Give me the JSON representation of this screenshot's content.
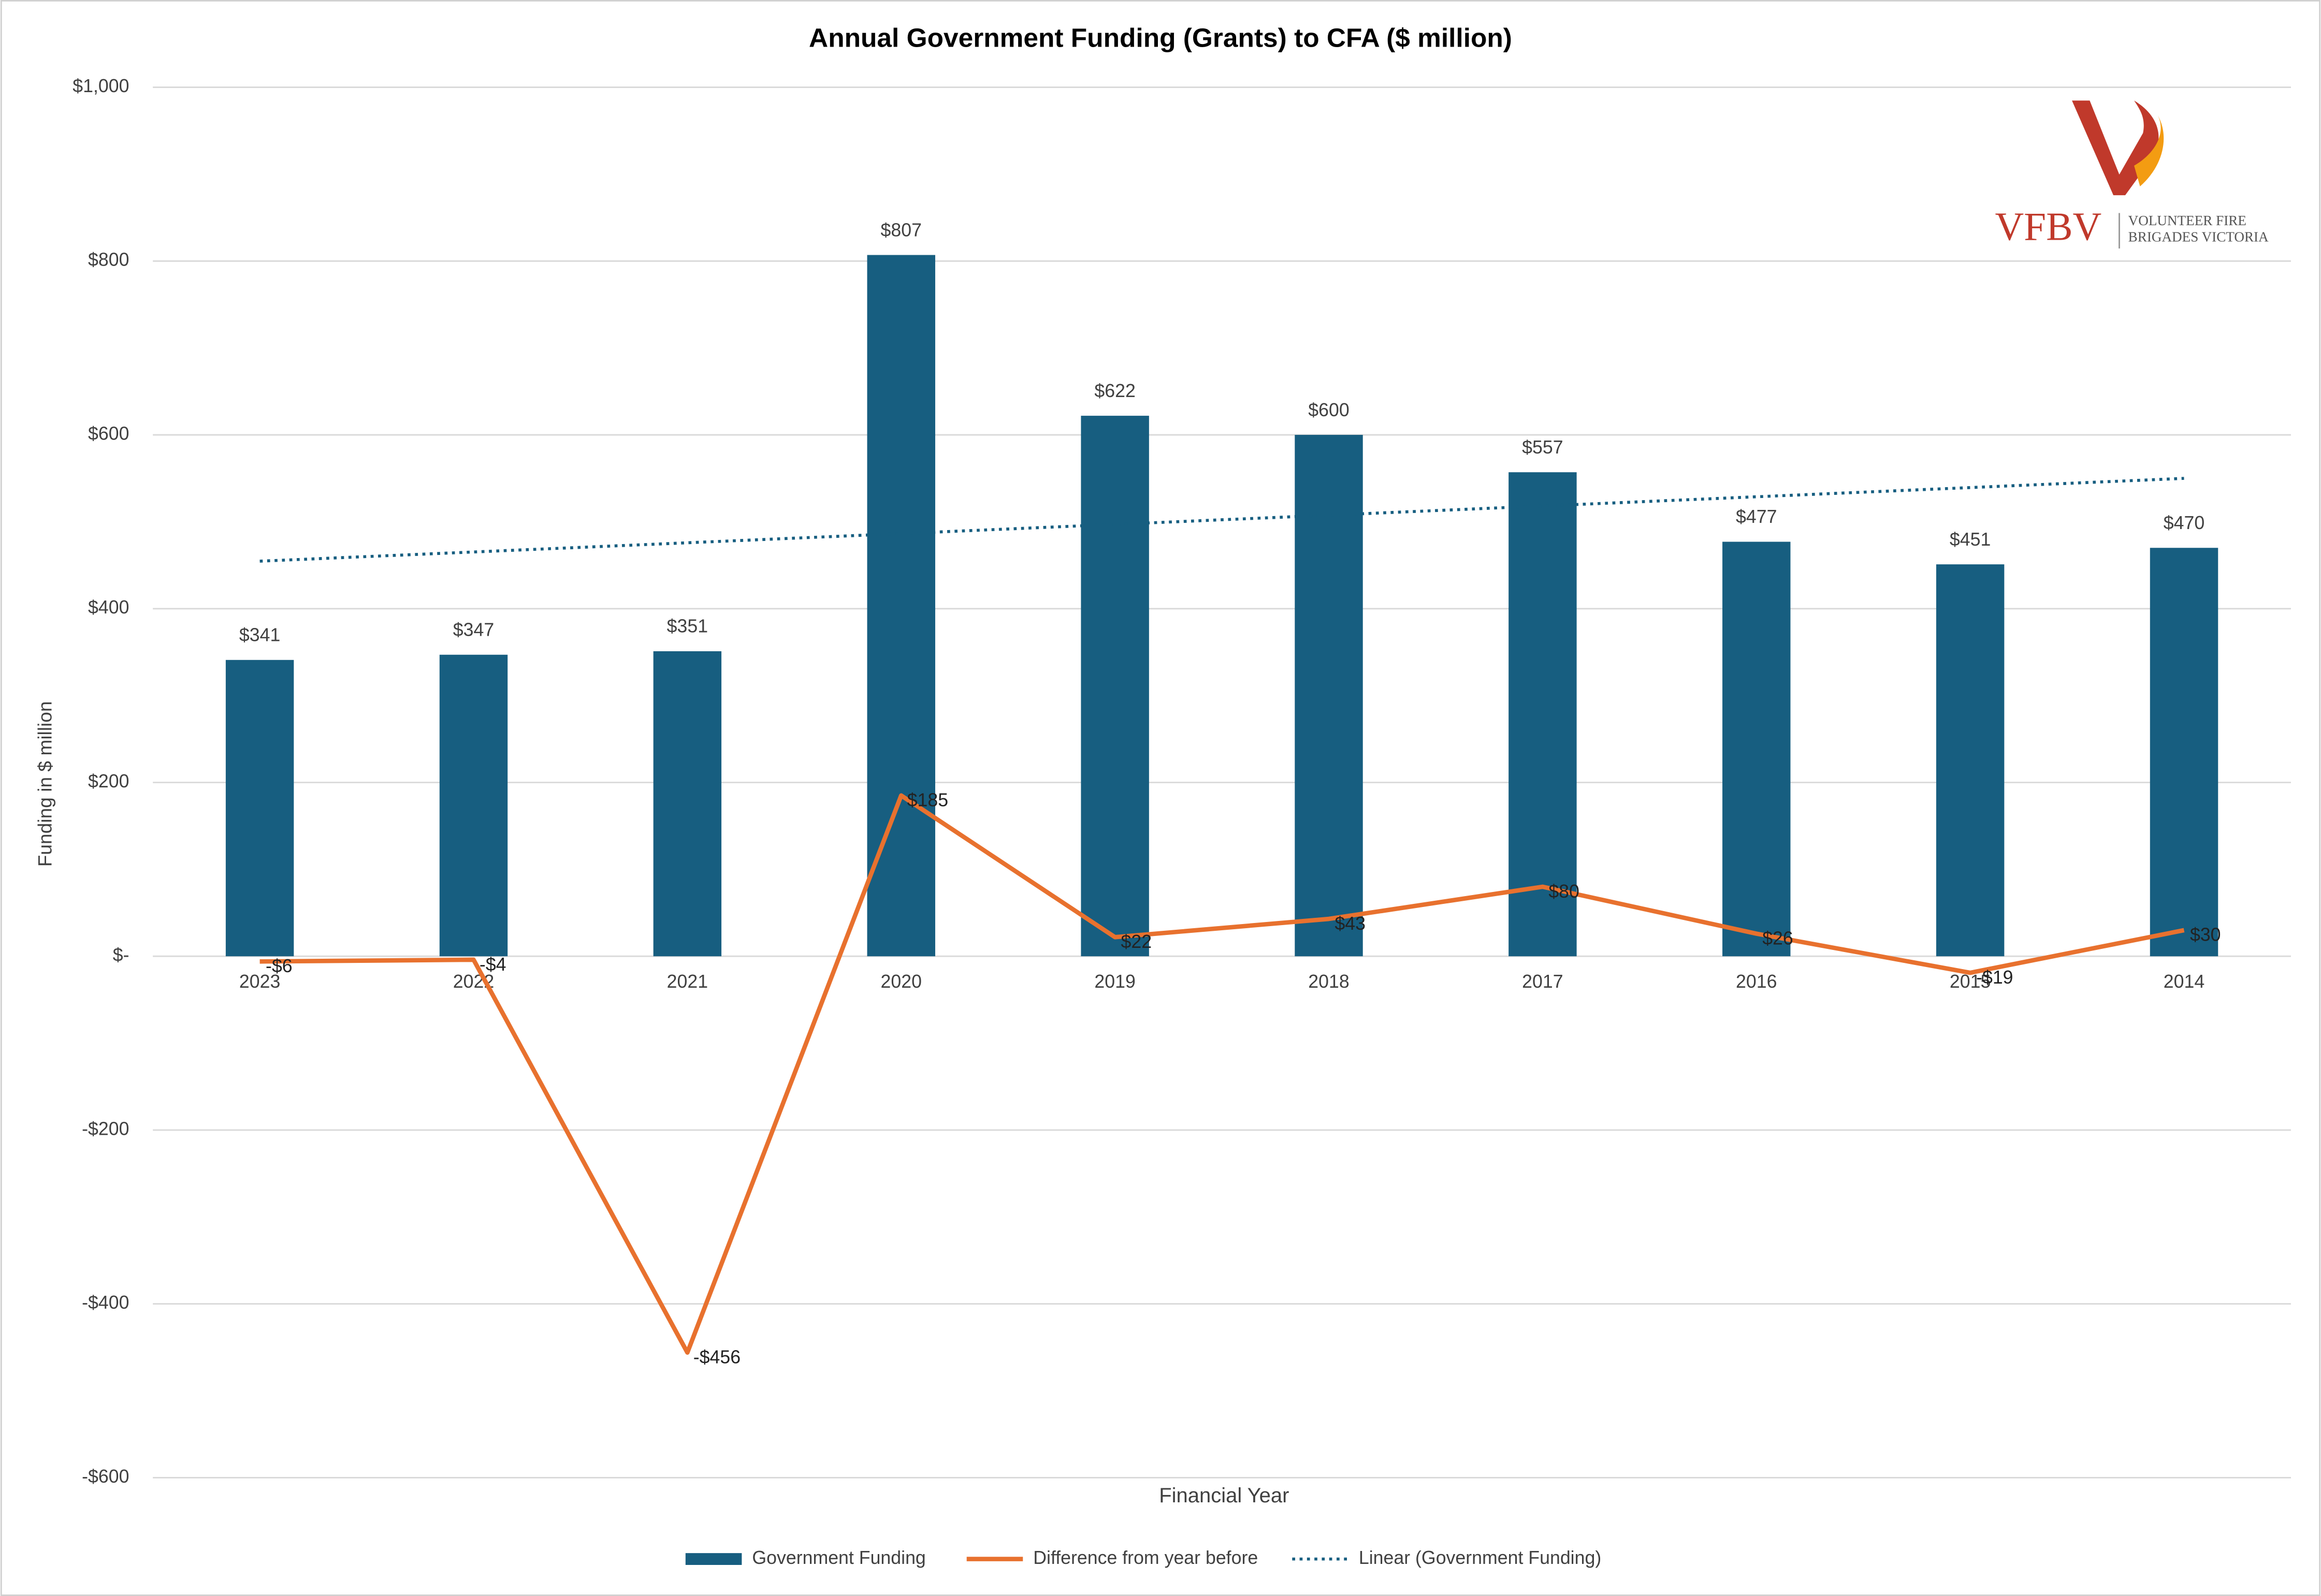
{
  "chart_data": {
    "type": "bar-line",
    "title": "Annual Government Funding (Grants) to CFA ($ million)",
    "x_label": "Financial Year",
    "y_label": "Funding in $ million",
    "categories": [
      "2023",
      "2022",
      "2021",
      "2020",
      "2019",
      "2018",
      "2017",
      "2016",
      "2015",
      "2014"
    ],
    "series": [
      {
        "name": "Government Funding",
        "type": "bar",
        "color": "#175e80",
        "values": [
          341,
          347,
          351,
          807,
          622,
          600,
          557,
          477,
          451,
          470
        ],
        "value_labels": [
          "$341",
          "$347",
          "$351",
          "$807",
          "$622",
          "$600",
          "$557",
          "$477",
          "$451",
          "$470"
        ]
      },
      {
        "name": "Difference from year before",
        "type": "line",
        "color": "#e8712e",
        "values": [
          -6,
          -4,
          -456,
          185,
          22,
          43,
          80,
          26,
          -19,
          30
        ],
        "value_labels": [
          "-$6",
          "-$4",
          "-$456",
          "$185",
          "$22",
          "$43",
          "$80",
          "$26",
          "-$19",
          "$30"
        ]
      }
    ],
    "trendline": {
      "name": "Linear (Government Funding)",
      "of_series": 0,
      "color": "#175e80"
    },
    "ylim": [
      -600,
      1000
    ],
    "yticks": [
      {
        "value": -600,
        "label": "-$600"
      },
      {
        "value": -400,
        "label": "-$400"
      },
      {
        "value": -200,
        "label": "-$200"
      },
      {
        "value": 0,
        "label": "$-"
      },
      {
        "value": 200,
        "label": "$200"
      },
      {
        "value": 400,
        "label": "$400"
      },
      {
        "value": 600,
        "label": "$600"
      },
      {
        "value": 800,
        "label": "$800"
      },
      {
        "value": 1000,
        "label": "$1,000"
      }
    ],
    "grid": true,
    "legend": "bottom"
  },
  "logo": {
    "text": "VFBV",
    "lines": [
      "VOLUNTEER FIRE",
      "BRIGADES VICTORIA"
    ]
  }
}
